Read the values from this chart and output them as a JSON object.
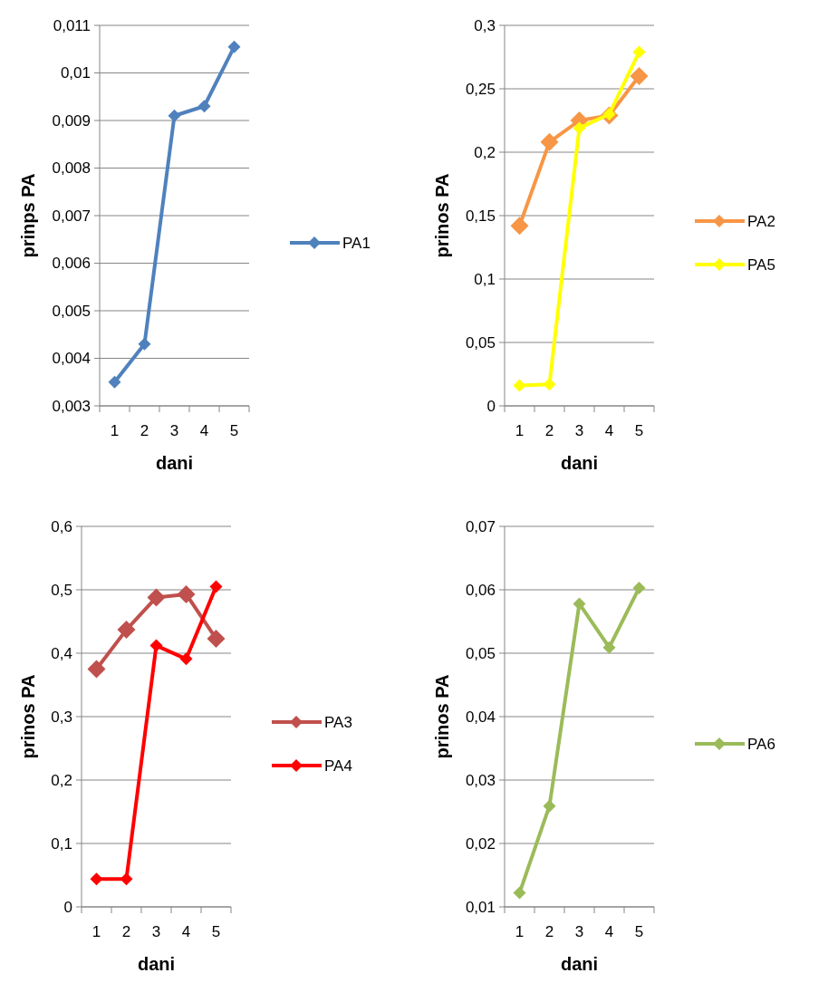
{
  "chart_data": [
    {
      "type": "line",
      "categories": [
        "1",
        "2",
        "3",
        "4",
        "5"
      ],
      "xlabel": "dani",
      "ylabel": "prinps PA",
      "ylim": [
        0.003,
        0.011
      ],
      "yticks": [
        {
          "value": 0.003,
          "label": "0,003"
        },
        {
          "value": 0.004,
          "label": "0,004"
        },
        {
          "value": 0.005,
          "label": "0,005"
        },
        {
          "value": 0.006,
          "label": "0,006"
        },
        {
          "value": 0.007,
          "label": "0,007"
        },
        {
          "value": 0.008,
          "label": "0,008"
        },
        {
          "value": 0.009,
          "label": "0,009"
        },
        {
          "value": 0.01,
          "label": "0,01"
        },
        {
          "value": 0.011,
          "label": "0,011"
        }
      ],
      "grid": "y",
      "legend": "right",
      "marker": "diamond",
      "series": [
        {
          "name": "PA1",
          "color": "#4f81bd",
          "values": [
            0.0035,
            0.0043,
            0.0091,
            0.0093,
            0.01055
          ]
        }
      ]
    },
    {
      "type": "line",
      "categories": [
        "1",
        "2",
        "3",
        "4",
        "5"
      ],
      "xlabel": "dani",
      "ylabel": "prinos PA",
      "ylim": [
        0,
        0.3
      ],
      "yticks": [
        0,
        {
          "value": 0.05,
          "label": "0,05"
        },
        {
          "value": 0.1,
          "label": "0,1"
        },
        {
          "value": 0.15,
          "label": "0,15"
        },
        {
          "value": 0.2,
          "label": "0,2"
        },
        {
          "value": 0.25,
          "label": "0,25"
        },
        {
          "value": 0.3,
          "label": "0,3"
        }
      ],
      "grid": "y",
      "legend": "right",
      "marker": "diamond",
      "series": [
        {
          "name": "PA2",
          "color": "#f79646",
          "values": [
            0.142,
            0.208,
            0.225,
            0.229,
            0.26
          ]
        },
        {
          "name": "PA5",
          "color": "#ffff00",
          "values": [
            0.016,
            0.017,
            0.219,
            0.23,
            0.279
          ]
        }
      ]
    },
    {
      "type": "line",
      "categories": [
        "1",
        "2",
        "3",
        "4",
        "5"
      ],
      "xlabel": "dani",
      "ylabel": "prinos PA",
      "ylim": [
        0,
        0.6
      ],
      "yticks": [
        0,
        {
          "value": 0.1,
          "label": "0,1"
        },
        {
          "value": 0.2,
          "label": "0,2"
        },
        {
          "value": 0.3,
          "label": "0,3"
        },
        {
          "value": 0.4,
          "label": "0,4"
        },
        {
          "value": 0.5,
          "label": "0,5"
        },
        {
          "value": 0.6,
          "label": "0,6"
        }
      ],
      "grid": "y",
      "legend": "right",
      "marker": "diamond",
      "series": [
        {
          "name": "PA3",
          "color": "#c0504d",
          "values": [
            0.375,
            0.437,
            0.488,
            0.493,
            0.423
          ]
        },
        {
          "name": "PA4",
          "color": "#ff0000",
          "values": [
            0.044,
            0.044,
            0.412,
            0.391,
            0.505
          ]
        }
      ]
    },
    {
      "type": "line",
      "categories": [
        "1",
        "2",
        "3",
        "4",
        "5"
      ],
      "xlabel": "dani",
      "ylabel": "prinos PA",
      "ylim": [
        0.01,
        0.07
      ],
      "yticks": [
        {
          "value": 0.01,
          "label": "0,01"
        },
        {
          "value": 0.02,
          "label": "0,02"
        },
        {
          "value": 0.03,
          "label": "0,03"
        },
        {
          "value": 0.04,
          "label": "0,04"
        },
        {
          "value": 0.05,
          "label": "0,05"
        },
        {
          "value": 0.06,
          "label": "0,06"
        },
        {
          "value": 0.07,
          "label": "0,07"
        }
      ],
      "grid": "y",
      "legend": "right",
      "marker": "diamond",
      "series": [
        {
          "name": "PA6",
          "color": "#9bbb59",
          "values": [
            0.0122,
            0.0259,
            0.0578,
            0.0509,
            0.0603
          ]
        }
      ]
    }
  ]
}
